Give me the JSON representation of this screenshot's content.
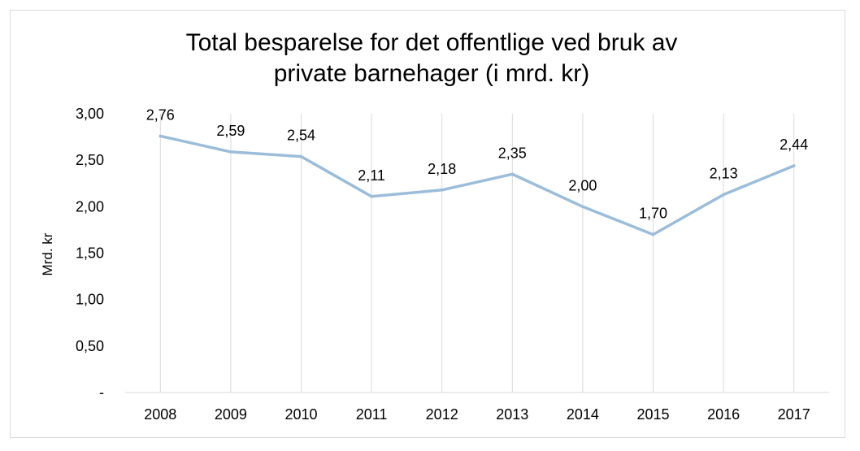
{
  "chart_data": {
    "type": "line",
    "title_lines": [
      "Total besparelse for det offentlige ved bruk av",
      "private barnehager (i mrd. kr)"
    ],
    "ylabel": "Mrd. kr",
    "xlabel": "",
    "categories": [
      "2008",
      "2009",
      "2010",
      "2011",
      "2012",
      "2013",
      "2014",
      "2015",
      "2016",
      "2017"
    ],
    "values": [
      2.76,
      2.59,
      2.54,
      2.11,
      2.18,
      2.35,
      2.0,
      1.7,
      2.13,
      2.44
    ],
    "data_labels": [
      "2,76",
      "2,59",
      "2,54",
      "2,11",
      "2,18",
      "2,35",
      "2,00",
      "1,70",
      "2,13",
      "2,44"
    ],
    "ylim": [
      0,
      3
    ],
    "yticks": [
      0,
      0.5,
      1,
      1.5,
      2,
      2.5,
      3
    ],
    "ytick_labels": [
      "-",
      "0,50",
      "1,00",
      "1,50",
      "2,00",
      "2,50",
      "3,00"
    ],
    "grid": "vertical",
    "legend": "none",
    "line_color": "#9bbdd9",
    "grid_color": "#d9d9d9"
  }
}
